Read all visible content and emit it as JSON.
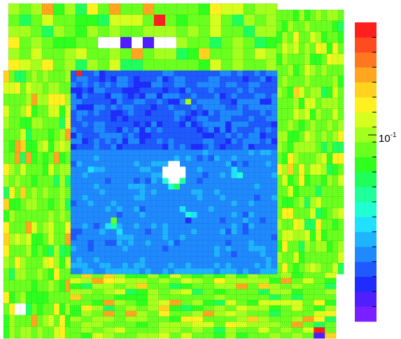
{
  "chart_data": {
    "type": "heatmap",
    "title": "",
    "xlabel": "",
    "ylabel": "",
    "color_scale": "log",
    "colorbar": {
      "tick_labels": [
        {
          "base": "10",
          "exp": "-1",
          "value": 0.1
        }
      ],
      "palette": [
        "#7a1fff",
        "#4f1fff",
        "#1f2cff",
        "#1f5aff",
        "#1f8aff",
        "#1fb4ff",
        "#1fe0ff",
        "#1fffd2",
        "#1fff9c",
        "#1fff5c",
        "#2fff1f",
        "#6aff1f",
        "#a4ff1f",
        "#d6ff1f",
        "#fff01f",
        "#ffd21f",
        "#ffa51f",
        "#ff781f",
        "#ff4b1f",
        "#ff1f1f"
      ]
    },
    "regions": [
      {
        "name": "top-detector",
        "cols": 24,
        "rows": 11,
        "base_level": 11
      },
      {
        "name": "left-detector",
        "cols": 12,
        "rows": 23,
        "base_level": 11
      },
      {
        "name": "right-detector",
        "cols": 12,
        "rows": 24,
        "base_level": 11
      },
      {
        "name": "bottom-detector",
        "cols": 24,
        "rows": 12,
        "base_level": 11
      },
      {
        "name": "center-detector",
        "cols": 36,
        "rows": 36,
        "base_level": 4
      }
    ],
    "special_cells": [
      {
        "region": "top-detector",
        "col": 13,
        "row": 1,
        "level": 19
      },
      {
        "region": "top-detector",
        "col": 8,
        "row": 3,
        "level": null
      },
      {
        "region": "top-detector",
        "col": 9,
        "row": 3,
        "level": null
      },
      {
        "region": "top-detector",
        "col": 10,
        "row": 3,
        "level": 1
      },
      {
        "region": "top-detector",
        "col": 11,
        "row": 3,
        "level": null
      },
      {
        "region": "top-detector",
        "col": 12,
        "row": 3,
        "level": 1
      },
      {
        "region": "top-detector",
        "col": 13,
        "row": 3,
        "level": null
      },
      {
        "region": "top-detector",
        "col": 14,
        "row": 3,
        "level": null
      },
      {
        "region": "left-detector",
        "col": 2,
        "row": 20,
        "level": null
      },
      {
        "region": "left-detector",
        "col": 3,
        "row": 20,
        "level": null
      },
      {
        "region": "bottom-detector",
        "col": 22,
        "row": 10,
        "level": 19
      },
      {
        "region": "bottom-detector",
        "col": 22,
        "row": 11,
        "level": 1
      },
      {
        "region": "center-detector",
        "col": 1,
        "row": 0,
        "level": 19
      },
      {
        "region": "center-detector",
        "col": 20,
        "row": 5,
        "level": 12
      }
    ]
  }
}
